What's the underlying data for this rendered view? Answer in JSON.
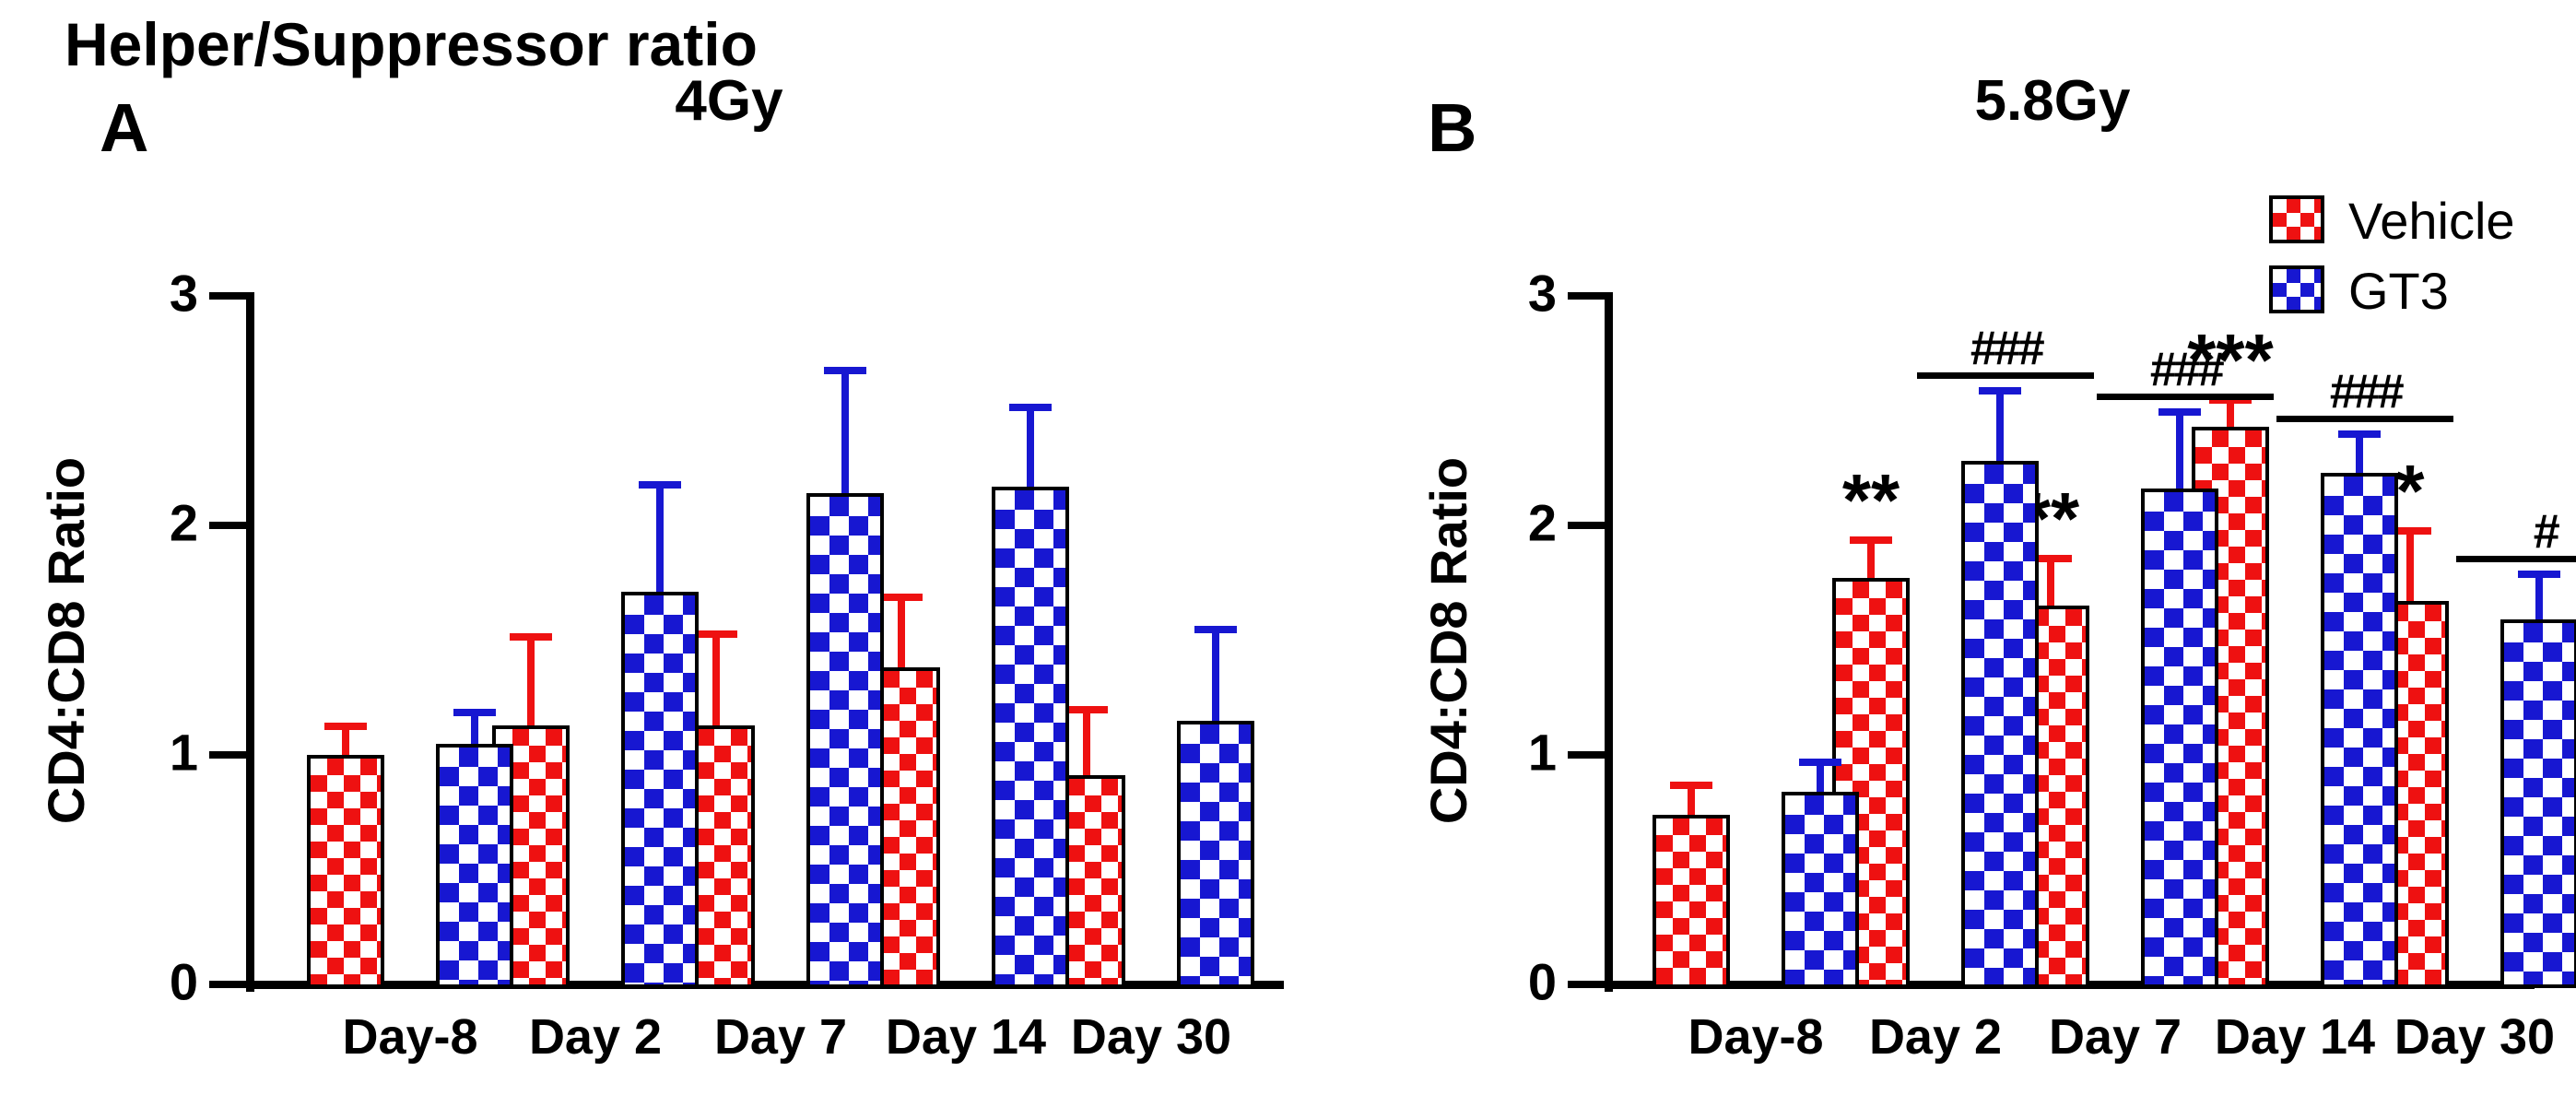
{
  "figure": {
    "title": "Helper/Suppressor ratio",
    "ylabel": "CD4:CD8 Ratio",
    "colors": {
      "vehicle": "#ee1111",
      "gt3": "#1717d1",
      "axis": "#000000"
    },
    "legend": [
      {
        "label": "Vehicle",
        "color": "#ee1111"
      },
      {
        "label": "GT3",
        "color": "#1717d1"
      }
    ]
  },
  "chart_data": [
    {
      "type": "bar",
      "panel_label": "A",
      "title": "4Gy",
      "categories": [
        "Day-8",
        "Day 2",
        "Day 7",
        "Day 14",
        "Day 30"
      ],
      "xlabel": "",
      "ylabel": "CD4:CD8 Ratio",
      "ylim": [
        0,
        3
      ],
      "yticks": [
        0,
        1,
        2,
        3
      ],
      "grid": false,
      "legend_visible": false,
      "series": [
        {
          "name": "Vehicle",
          "color": "#ee1111",
          "values": [
            1.0,
            1.13,
            1.13,
            1.38,
            0.91
          ],
          "errors_plus": [
            0.13,
            0.39,
            0.4,
            0.31,
            0.29
          ],
          "annotations": [
            "",
            "",
            "",
            "",
            ""
          ]
        },
        {
          "name": "GT3",
          "color": "#1717d1",
          "values": [
            1.05,
            1.71,
            2.14,
            2.17,
            1.15
          ],
          "errors_plus": [
            0.14,
            0.47,
            0.54,
            0.35,
            0.4
          ],
          "annotations": [
            "",
            "",
            "",
            "",
            ""
          ]
        }
      ]
    },
    {
      "type": "bar",
      "panel_label": "B",
      "title": "5.8Gy",
      "categories": [
        "Day-8",
        "Day 2",
        "Day 7",
        "Day 14",
        "Day 30"
      ],
      "xlabel": "",
      "ylabel": "CD4:CD8 Ratio",
      "ylim": [
        0,
        3
      ],
      "yticks": [
        0,
        1,
        2,
        3
      ],
      "grid": false,
      "legend_visible": true,
      "series": [
        {
          "name": "Vehicle",
          "color": "#ee1111",
          "values": [
            0.74,
            1.77,
            1.65,
            2.43,
            1.67
          ],
          "errors_plus": [
            0.13,
            0.17,
            0.21,
            0.12,
            0.31
          ],
          "annotations": [
            "",
            "**",
            "**",
            "***",
            "*"
          ]
        },
        {
          "name": "GT3",
          "color": "#1717d1",
          "values": [
            0.84,
            2.28,
            2.16,
            2.23,
            1.59
          ],
          "errors_plus": [
            0.13,
            0.31,
            0.34,
            0.17,
            0.2
          ],
          "annotations": [
            "",
            "###",
            "###",
            "###",
            "#"
          ]
        }
      ]
    }
  ]
}
